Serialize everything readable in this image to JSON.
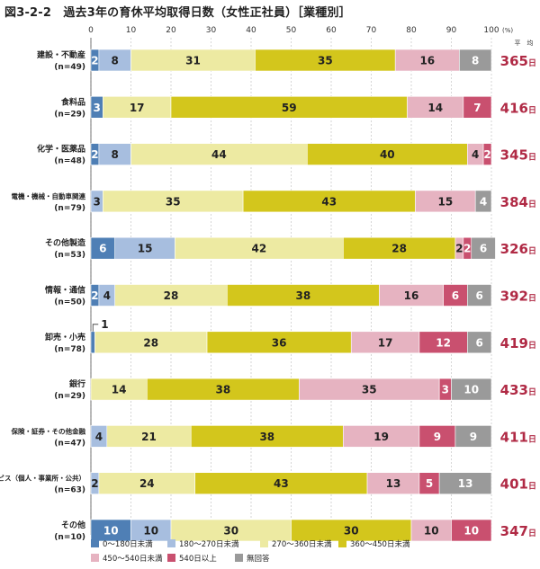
{
  "title": "図3-2-2　過去3年の育休平均取得日数（女性正社員）［業種別］",
  "chart_data": {
    "type": "bar",
    "orientation": "horizontal",
    "stacked": true,
    "percent_unit": "(%)",
    "avg_header": "平　均",
    "avg_unit": "日",
    "xlim": [
      0,
      100
    ],
    "xticks": [
      0,
      10,
      20,
      30,
      40,
      50,
      60,
      70,
      80,
      90,
      100
    ],
    "grid": true,
    "legend_position": "bottom",
    "categories": [
      {
        "line1": "建設・不動産",
        "line2": "(n=49)",
        "average": "365"
      },
      {
        "line1": "食料品",
        "line2": "(n=29)",
        "average": "416"
      },
      {
        "line1": "化学・医薬品",
        "line2": "(n=48)",
        "average": "345"
      },
      {
        "line1": "電機・機械・自動車関連",
        "line2": "(n=79)",
        "average": "384"
      },
      {
        "line1": "その他製造",
        "line2": "(n=53)",
        "average": "326"
      },
      {
        "line1": "情報・通信",
        "line2": "(n=50)",
        "average": "392"
      },
      {
        "line1": "卸売・小売",
        "line2": "(n=78)",
        "average": "419"
      },
      {
        "line1": "銀行",
        "line2": "(n=29)",
        "average": "433"
      },
      {
        "line1": "保険・証券・その他金融",
        "line2": "(n=47)",
        "average": "411"
      },
      {
        "line1": "サービス（個人・事業所・公共）",
        "line2": "(n=63)",
        "average": "401"
      },
      {
        "line1": "その他",
        "line2": "(n=10)",
        "average": "347"
      }
    ],
    "series": [
      {
        "name": "0～180日未満",
        "color": "#4f7fb5",
        "label_color": "#ffffff",
        "values": [
          2,
          3,
          2,
          0,
          6,
          2,
          1,
          0,
          0,
          0,
          10
        ],
        "labels": [
          "2",
          "3",
          "2",
          "",
          "6",
          "2",
          "",
          "",
          "",
          "",
          "10"
        ]
      },
      {
        "name": "180～270日未満",
        "color": "#a7bedf",
        "label_color": "#222222",
        "values": [
          8,
          0,
          8,
          3,
          15,
          4,
          0,
          0,
          4,
          2,
          10
        ],
        "labels": [
          "8",
          "",
          "8",
          "3",
          "15",
          "4",
          "",
          "",
          "4",
          "2",
          "10"
        ]
      },
      {
        "name": "270～360日未満",
        "color": "#edeaa2",
        "label_color": "#222222",
        "values": [
          31,
          17,
          44,
          35,
          42,
          28,
          28,
          14,
          21,
          24,
          30
        ],
        "labels": [
          "31",
          "17",
          "44",
          "35",
          "42",
          "28",
          "28",
          "14",
          "21",
          "24",
          "30"
        ]
      },
      {
        "name": "360～450日未満",
        "color": "#d3c61c",
        "label_color": "#222222",
        "values": [
          35,
          59,
          40,
          43,
          28,
          38,
          36,
          38,
          38,
          43,
          30
        ],
        "labels": [
          "35",
          "59",
          "40",
          "43",
          "28",
          "38",
          "36",
          "38",
          "38",
          "43",
          "30"
        ]
      },
      {
        "name": "450～540日未満",
        "color": "#e6b3c1",
        "label_color": "#222222",
        "values": [
          16,
          14,
          4,
          15,
          2,
          16,
          17,
          35,
          19,
          13,
          10
        ],
        "labels": [
          "16",
          "14",
          "4",
          "15",
          "2",
          "16",
          "17",
          "35",
          "19",
          "13",
          "10"
        ]
      },
      {
        "name": "540日以上",
        "color": "#c9506f",
        "label_color": "#ffffff",
        "values": [
          0,
          7,
          2,
          0,
          2,
          6,
          12,
          3,
          9,
          5,
          10
        ],
        "labels": [
          "",
          "7",
          "2",
          "",
          "2",
          "6",
          "12",
          "3",
          "9",
          "5",
          "10"
        ]
      },
      {
        "name": "無回答",
        "color": "#9a9a9a",
        "label_color": "#ffffff",
        "values": [
          8,
          0,
          0,
          4,
          6,
          6,
          6,
          10,
          9,
          13,
          0
        ],
        "labels": [
          "8",
          "",
          "",
          "4",
          "6",
          "6",
          "6",
          "10",
          "9",
          "13",
          ""
        ]
      }
    ],
    "annotations": [
      {
        "category_index": 6,
        "text": "1"
      }
    ]
  },
  "colors": {
    "average_text": "#b02a45",
    "grid": "#bbbbbb",
    "axis": "#555555"
  }
}
